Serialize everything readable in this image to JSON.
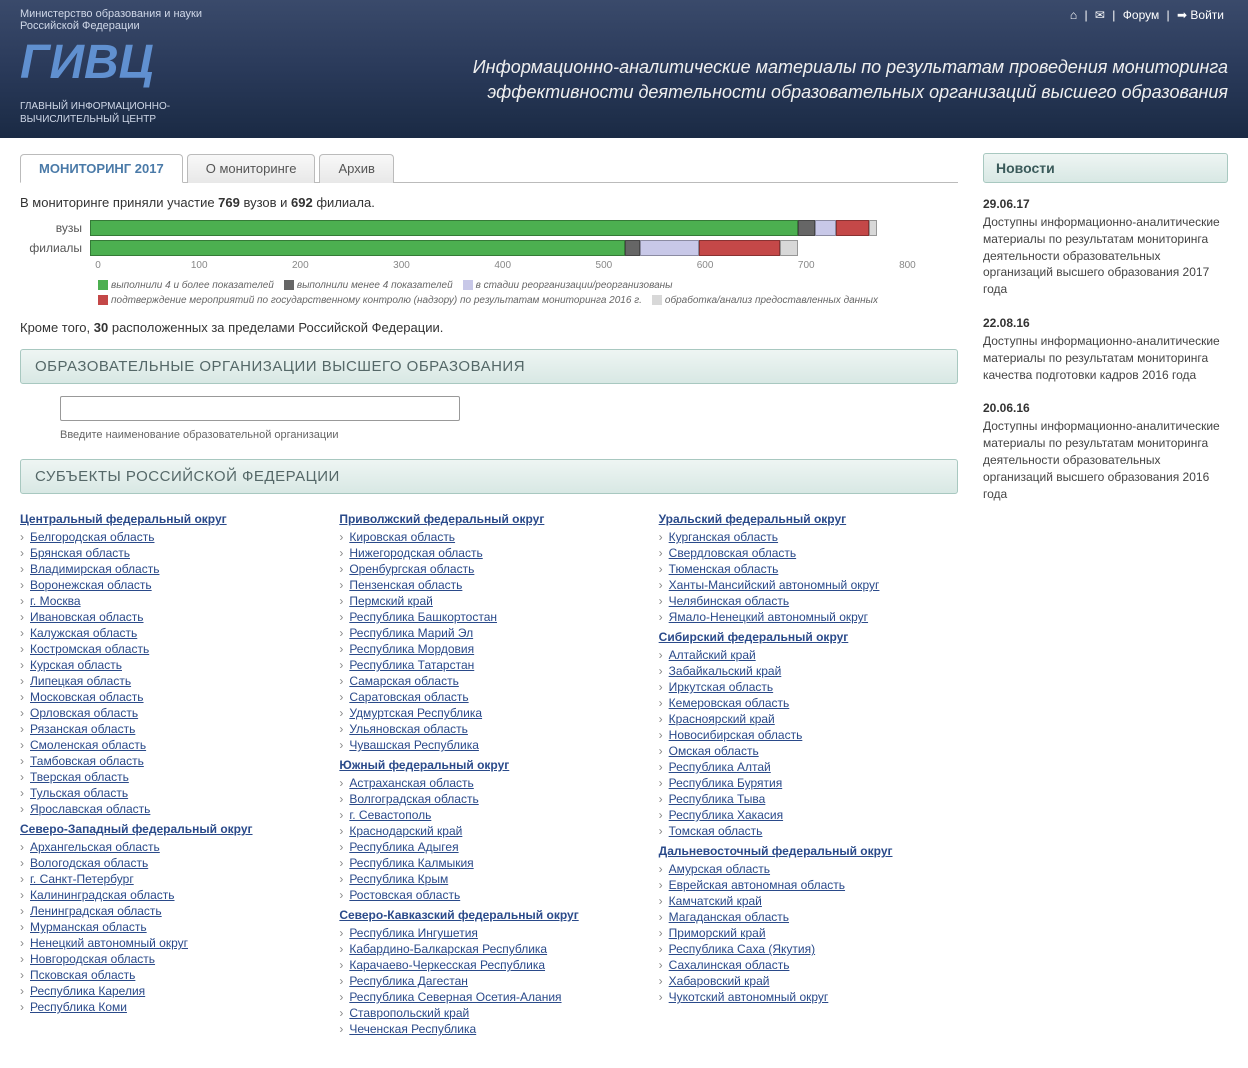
{
  "header": {
    "ministry": "Министерство образования и науки\nРоссийской Федерации",
    "logo_sub": "ГЛАВНЫЙ ИНФОРМАЦИОННО-\nВЫЧИСЛИТЕЛЬНЫЙ ЦЕНТР",
    "title": "Информационно-аналитические материалы по результатам проведения мониторинга эффективности деятельности образовательных организаций высшего образования",
    "links": {
      "forum": "Форум",
      "login": "Войти"
    }
  },
  "tabs": [
    "МОНИТОРИНГ 2017",
    "О мониторинге",
    "Архив"
  ],
  "intro": {
    "prefix": "В мониторинге приняли участие ",
    "n1": "769",
    "mid": " вузов и ",
    "n2": "692",
    "suffix": " филиала."
  },
  "chart": {
    "rows": [
      {
        "label": "вузы",
        "segments": [
          {
            "color": "#4caf50",
            "width": 81.6
          },
          {
            "color": "#666666",
            "width": 1.9
          },
          {
            "color": "#c8c8e8",
            "width": 2.4
          },
          {
            "color": "#c44848",
            "width": 3.8
          },
          {
            "color": "#d8d8d8",
            "width": 1.0
          }
        ]
      },
      {
        "label": "филиалы",
        "segments": [
          {
            "color": "#4caf50",
            "width": 61.6
          },
          {
            "color": "#666666",
            "width": 1.8
          },
          {
            "color": "#c8c8e8",
            "width": 6.8
          },
          {
            "color": "#c44848",
            "width": 9.3
          },
          {
            "color": "#d8d8d8",
            "width": 2.1
          }
        ]
      }
    ],
    "axis": [
      0,
      100,
      200,
      300,
      400,
      500,
      600,
      700,
      800
    ],
    "axis_max": 850,
    "legend": [
      {
        "color": "#4caf50",
        "label": "выполнили 4 и более показателей"
      },
      {
        "color": "#666666",
        "label": "выполнили менее 4 показателей"
      },
      {
        "color": "#c8c8e8",
        "label": "в стадии реорганизации/реорганизованы"
      },
      {
        "color": "#c44848",
        "label": "подтверждение мероприятий по государственному контролю (надзору) по результатам мониторинга 2016 г."
      },
      {
        "color": "#d8d8d8",
        "label": "обработка/анализ предоставленных данных"
      }
    ]
  },
  "extra_note": {
    "prefix": "Кроме того, ",
    "n": "30",
    "suffix": " расположенных за пределами Российской Федерации."
  },
  "sections": {
    "orgs": "ОБРАЗОВАТЕЛЬНЫЕ ОРГАНИЗАЦИИ ВЫСШЕГО ОБРАЗОВАНИЯ",
    "subjects": "СУБЪЕКТЫ РОССИЙСКОЙ ФЕДЕРАЦИИ"
  },
  "search": {
    "hint": "Введите наименование образовательной организации"
  },
  "districts": [
    {
      "title": "Центральный федеральный округ",
      "col": 0,
      "regions": [
        "Белгородская область",
        "Брянская область",
        "Владимирская область",
        "Воронежская область",
        "г. Москва",
        "Ивановская область",
        "Калужская область",
        "Костромская область",
        "Курская область",
        "Липецкая область",
        "Московская область",
        "Орловская область",
        "Рязанская область",
        "Смоленская область",
        "Тамбовская область",
        "Тверская область",
        "Тульская область",
        "Ярославская область"
      ]
    },
    {
      "title": "Северо-Западный федеральный округ",
      "col": 0,
      "regions": [
        "Архангельская область",
        "Вологодская область",
        "г. Санкт-Петербург",
        "Калининградская область",
        "Ленинградская область",
        "Мурманская область",
        "Ненецкий автономный округ",
        "Новгородская область",
        "Псковская область",
        "Республика Карелия",
        "Республика Коми"
      ]
    },
    {
      "title": "Приволжский федеральный округ",
      "col": 1,
      "regions": [
        "Кировская область",
        "Нижегородская область",
        "Оренбургская область",
        "Пензенская область",
        "Пермский край",
        "Республика Башкортостан",
        "Республика Марий Эл",
        "Республика Мордовия",
        "Республика Татарстан",
        "Самарская область",
        "Саратовская область",
        "Удмуртская Республика",
        "Ульяновская область",
        "Чувашская Республика"
      ]
    },
    {
      "title": "Южный федеральный округ",
      "col": 1,
      "regions": [
        "Астраханская область",
        "Волгоградская область",
        "г. Севастополь",
        "Краснодарский край",
        "Республика Адыгея",
        "Республика Калмыкия",
        "Республика Крым",
        "Ростовская область"
      ]
    },
    {
      "title": "Северо-Кавказский федеральный округ",
      "col": 1,
      "regions": [
        "Республика Ингушетия",
        "Кабардино-Балкарская Республика",
        "Карачаево-Черкесская Республика",
        "Республика Дагестан",
        "Республика Северная Осетия-Алания",
        "Ставропольский край",
        "Чеченская Республика"
      ]
    },
    {
      "title": "Уральский федеральный округ",
      "col": 2,
      "regions": [
        "Курганская область",
        "Свердловская область",
        "Тюменская область",
        "Ханты-Мансийский автономный округ",
        "Челябинская область",
        "Ямало-Ненецкий автономный округ"
      ]
    },
    {
      "title": "Сибирский федеральный округ",
      "col": 2,
      "regions": [
        "Алтайский край",
        "Забайкальский край",
        "Иркутская область",
        "Кемеровская область",
        "Красноярский край",
        "Новосибирская область",
        "Омская область",
        "Республика Алтай",
        "Республика Бурятия",
        "Республика Тыва",
        "Республика Хакасия",
        "Томская область"
      ]
    },
    {
      "title": "Дальневосточный федеральный округ",
      "col": 2,
      "regions": [
        "Амурская область",
        "Еврейская автономная область",
        "Камчатский край",
        "Магаданская область",
        "Приморский край",
        "Республика Саха (Якутия)",
        "Сахалинская область",
        "Хабаровский край",
        "Чукотский автономный округ"
      ]
    }
  ],
  "news": {
    "title": "Новости",
    "items": [
      {
        "date": "29.06.17",
        "text": "Доступны информационно-аналитические материалы по результатам мониторинга деятельности образовательных организаций высшего образования 2017 года"
      },
      {
        "date": "22.08.16",
        "text": "Доступны информационно-аналитические материалы по результатам мониторинга качества подготовки кадров 2016 года"
      },
      {
        "date": "20.06.16",
        "text": "Доступны информационно-аналитические материалы по результатам мониторинга деятельности образовательных организаций высшего образования 2016 года"
      }
    ]
  }
}
